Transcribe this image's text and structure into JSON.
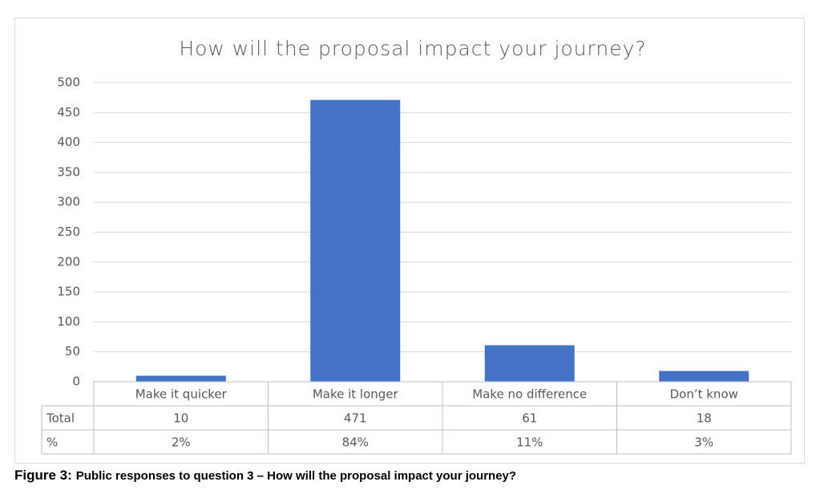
{
  "chart_data": {
    "type": "bar",
    "title": "How will the proposal impact your journey?",
    "categories": [
      "Make it quicker",
      "Make it longer",
      "Make no difference",
      "Don’t know"
    ],
    "series": [
      {
        "name": "Total",
        "color": "#4472c4",
        "values": [
          10,
          471,
          61,
          18
        ]
      }
    ],
    "table_rows": [
      {
        "name": "%",
        "values": [
          2,
          84,
          11,
          3
        ],
        "value_labels": [
          "2%",
          "84%",
          "11%",
          "3%"
        ]
      }
    ],
    "ylim": [
      0,
      500
    ],
    "yticks": [
      0,
      50,
      100,
      150,
      200,
      250,
      300,
      350,
      400,
      450,
      500
    ],
    "grid": true
  },
  "caption": {
    "label": "Figure 3:",
    "text": "Public responses to question 3 – How will the proposal impact your journey?"
  }
}
